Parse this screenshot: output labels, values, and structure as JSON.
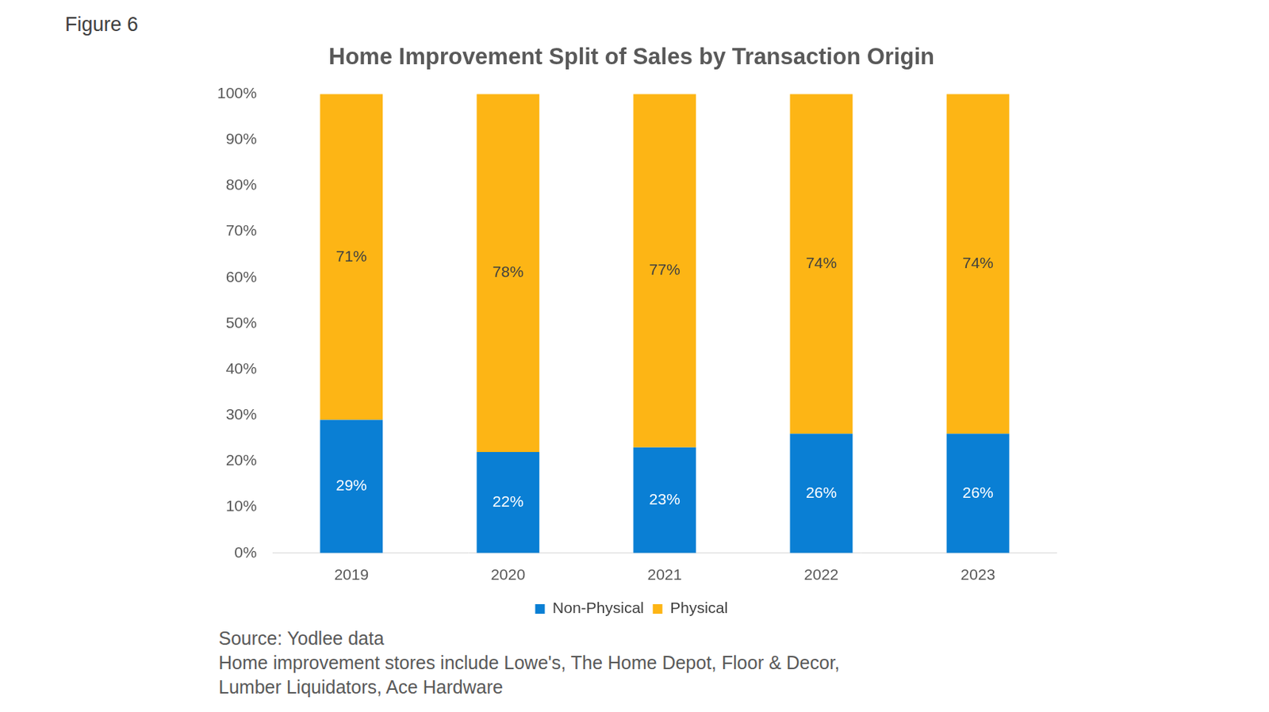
{
  "figure_label": "Figure 6",
  "chart_data": {
    "type": "bar",
    "title": "Home Improvement Split of Sales by Transaction Origin",
    "categories": [
      "2019",
      "2020",
      "2021",
      "2022",
      "2023"
    ],
    "series": [
      {
        "name": "Non-Physical",
        "color": "#0a7fd4",
        "values": [
          29,
          22,
          23,
          26,
          26
        ],
        "value_labels": [
          "29%",
          "22%",
          "23%",
          "26%",
          "26%"
        ]
      },
      {
        "name": "Physical",
        "color": "#fdb515",
        "values": [
          71,
          78,
          77,
          74,
          74
        ],
        "value_labels": [
          "71%",
          "78%",
          "77%",
          "74%",
          "74%"
        ]
      }
    ],
    "ylim": [
      0,
      100
    ],
    "yticks": [
      {
        "value": 0,
        "label": "0%"
      },
      {
        "value": 10,
        "label": "10%"
      },
      {
        "value": 20,
        "label": "20%"
      },
      {
        "value": 30,
        "label": "30%"
      },
      {
        "value": 40,
        "label": "40%"
      },
      {
        "value": 50,
        "label": "50%"
      },
      {
        "value": 60,
        "label": "60%"
      },
      {
        "value": 70,
        "label": "70%"
      },
      {
        "value": 80,
        "label": "80%"
      },
      {
        "value": 90,
        "label": "90%"
      },
      {
        "value": 100,
        "label": "100%"
      }
    ],
    "stacked": true,
    "data_labels": true,
    "legend": "bottom",
    "grid": false
  },
  "source": "Source: Yodlee data",
  "notes": [
    "Home improvement stores include Lowe's, The Home Depot, Floor & Decor,",
    "Lumber Liquidators, Ace Hardware"
  ]
}
